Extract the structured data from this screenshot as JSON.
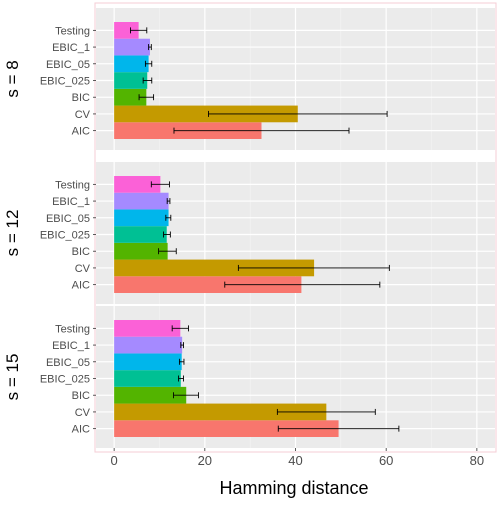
{
  "chart_data": {
    "type": "bar",
    "orientation": "horizontal",
    "xlabel": "Hamming distance",
    "xlim": [
      -4,
      84
    ],
    "xticks": [
      0,
      20,
      40,
      60,
      80
    ],
    "grid": true,
    "legend": "none",
    "categories": [
      "AIC",
      "CV",
      "BIC",
      "EBIC_025",
      "EBIC_05",
      "EBIC_1",
      "Testing"
    ],
    "colors": {
      "AIC": "#F8766D",
      "CV": "#C49A00",
      "BIC": "#53B400",
      "EBIC_025": "#00C094",
      "EBIC_05": "#00B6EB",
      "EBIC_1": "#A58AFF",
      "Testing": "#FB61D7"
    },
    "panels": [
      {
        "label": "s = 8",
        "bars": [
          {
            "category": "AIC",
            "value": 32.5,
            "err_low": 13.2,
            "err_high": 51.8
          },
          {
            "category": "CV",
            "value": 40.5,
            "err_low": 20.8,
            "err_high": 60.2
          },
          {
            "category": "BIC",
            "value": 7.1,
            "err_low": 5.5,
            "err_high": 8.7
          },
          {
            "category": "EBIC_025",
            "value": 7.3,
            "err_low": 6.4,
            "err_high": 8.3
          },
          {
            "category": "EBIC_05",
            "value": 7.6,
            "err_low": 6.9,
            "err_high": 8.3
          },
          {
            "category": "EBIC_1",
            "value": 7.9,
            "err_low": 7.6,
            "err_high": 8.2
          },
          {
            "category": "Testing",
            "value": 5.4,
            "err_low": 3.6,
            "err_high": 7.2
          }
        ]
      },
      {
        "label": "s = 12",
        "bars": [
          {
            "category": "AIC",
            "value": 41.3,
            "err_low": 24.4,
            "err_high": 58.6
          },
          {
            "category": "CV",
            "value": 44.1,
            "err_low": 27.4,
            "err_high": 60.7
          },
          {
            "category": "BIC",
            "value": 11.8,
            "err_low": 9.8,
            "err_high": 13.7
          },
          {
            "category": "EBIC_025",
            "value": 11.6,
            "err_low": 10.9,
            "err_high": 12.4
          },
          {
            "category": "EBIC_05",
            "value": 12.0,
            "err_low": 11.4,
            "err_high": 12.5
          },
          {
            "category": "EBIC_1",
            "value": 12.0,
            "err_low": 11.7,
            "err_high": 12.3
          },
          {
            "category": "Testing",
            "value": 10.2,
            "err_low": 8.2,
            "err_high": 12.2
          }
        ]
      },
      {
        "label": "s = 15",
        "bars": [
          {
            "category": "AIC",
            "value": 49.5,
            "err_low": 36.2,
            "err_high": 62.8
          },
          {
            "category": "CV",
            "value": 46.8,
            "err_low": 36.0,
            "err_high": 57.6
          },
          {
            "category": "BIC",
            "value": 15.9,
            "err_low": 13.1,
            "err_high": 18.6
          },
          {
            "category": "EBIC_025",
            "value": 14.7,
            "err_low": 14.2,
            "err_high": 15.3
          },
          {
            "category": "EBIC_05",
            "value": 14.9,
            "err_low": 14.4,
            "err_high": 15.4
          },
          {
            "category": "EBIC_1",
            "value": 15.0,
            "err_low": 14.7,
            "err_high": 15.3
          },
          {
            "category": "Testing",
            "value": 14.6,
            "err_low": 12.8,
            "err_high": 16.4
          }
        ]
      }
    ]
  }
}
